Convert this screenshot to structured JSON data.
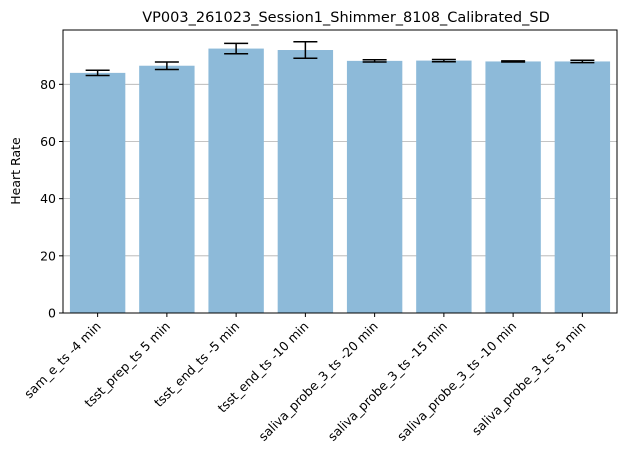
{
  "chart_data": {
    "type": "bar",
    "title": "VP003_261023_Session1_Shimmer_8108_Calibrated_SD",
    "xlabel": "",
    "ylabel": "Heart Rate",
    "categories": [
      "sam_e_ts -4 min",
      "tsst_prep_ts 5 min",
      "tsst_end_ts -5 min",
      "tsst_end_ts -10 min",
      "saliva_probe_3_ts -20 min",
      "saliva_probe_3_ts -15 min",
      "saliva_probe_3_ts -10 min",
      "saliva_probe_3_ts -5 min"
    ],
    "values": [
      84.0,
      86.5,
      92.5,
      92.0,
      88.2,
      88.3,
      88.0,
      88.0
    ],
    "errors": [
      0.9,
      1.3,
      1.8,
      2.9,
      0.4,
      0.4,
      0.2,
      0.4
    ],
    "ylim": [
      0,
      99
    ],
    "yticks": [
      0,
      20,
      40,
      60,
      80
    ],
    "grid": "y",
    "bar_color": "#8dbad9",
    "error_color": "#000000",
    "grid_color": "#b0b0b0"
  }
}
